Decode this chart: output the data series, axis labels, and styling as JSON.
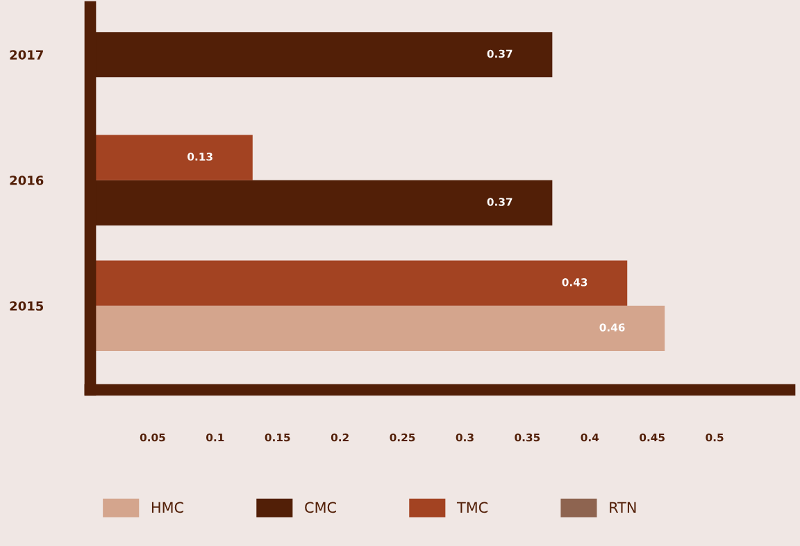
{
  "chart_data": {
    "type": "bar",
    "orientation": "horizontal",
    "categories": [
      "2017",
      "2016",
      "2015"
    ],
    "series": [
      {
        "name": "HMC",
        "color": "#d4a58d",
        "values": [
          null,
          null,
          0.46
        ]
      },
      {
        "name": "CMC",
        "color": "#521f07",
        "values": [
          0.37,
          0.37,
          null
        ]
      },
      {
        "name": "TMC",
        "color": "#a34322",
        "values": [
          null,
          0.13,
          0.43
        ]
      },
      {
        "name": "RTN",
        "color": "#8e6450",
        "values": [
          null,
          null,
          null
        ]
      }
    ],
    "xlim": [
      0,
      0.56
    ],
    "xticks": [
      0.05,
      0.1,
      0.15,
      0.2,
      0.25,
      0.3,
      0.35,
      0.4,
      0.45,
      0.5
    ],
    "data_labels": true,
    "legend": "bottom",
    "grid": false
  }
}
